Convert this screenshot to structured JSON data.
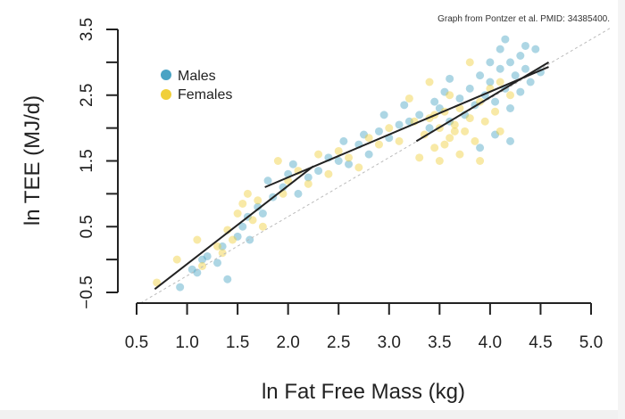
{
  "credit": "Graph from Pontzer et al. PMID: 34385400.",
  "chart_data": {
    "type": "scatter",
    "xlabel": "ln Fat Free Mass (kg)",
    "ylabel": "ln TEE (MJ/d)",
    "xlim": [
      0.5,
      5.0
    ],
    "ylim": [
      -0.5,
      3.5
    ],
    "xticks": [
      "0.5",
      "1.0",
      "1.5",
      "2.0",
      "2.5",
      "3.0",
      "3.5",
      "4.0",
      "4.5",
      "5.0"
    ],
    "yticks_labeled": [
      "-0.5",
      "0.5",
      "1.5",
      "2.5",
      "3.5"
    ],
    "yticks_minor": [
      0.0,
      1.0,
      2.0,
      3.0
    ],
    "grid": false,
    "legend_position": "top-left",
    "series": [
      {
        "name": "Males",
        "color": "#4aa3c4",
        "points": [
          [
            0.93,
            -0.42
          ],
          [
            1.05,
            -0.15
          ],
          [
            1.1,
            -0.2
          ],
          [
            1.2,
            0.05
          ],
          [
            1.15,
            0.0
          ],
          [
            1.3,
            -0.05
          ],
          [
            1.35,
            0.2
          ],
          [
            1.4,
            -0.3
          ],
          [
            1.5,
            0.35
          ],
          [
            1.55,
            0.5
          ],
          [
            1.6,
            0.65
          ],
          [
            1.62,
            0.3
          ],
          [
            1.7,
            0.8
          ],
          [
            1.75,
            0.7
          ],
          [
            1.8,
            1.2
          ],
          [
            1.85,
            0.95
          ],
          [
            1.95,
            1.1
          ],
          [
            2.0,
            1.3
          ],
          [
            2.05,
            1.45
          ],
          [
            2.1,
            1.0
          ],
          [
            2.2,
            1.25
          ],
          [
            2.3,
            1.35
          ],
          [
            2.4,
            1.55
          ],
          [
            2.5,
            1.5
          ],
          [
            2.55,
            1.8
          ],
          [
            2.6,
            1.45
          ],
          [
            2.7,
            1.75
          ],
          [
            2.75,
            1.9
          ],
          [
            2.8,
            1.6
          ],
          [
            2.9,
            1.95
          ],
          [
            2.95,
            2.2
          ],
          [
            3.0,
            1.85
          ],
          [
            3.1,
            2.05
          ],
          [
            3.15,
            2.35
          ],
          [
            3.2,
            2.1
          ],
          [
            3.3,
            2.2
          ],
          [
            3.4,
            2.0
          ],
          [
            3.45,
            2.4
          ],
          [
            3.5,
            2.3
          ],
          [
            3.55,
            2.55
          ],
          [
            3.6,
            2.1
          ],
          [
            3.7,
            2.45
          ],
          [
            3.75,
            2.2
          ],
          [
            3.8,
            2.6
          ],
          [
            3.85,
            2.35
          ],
          [
            3.9,
            2.8
          ],
          [
            3.95,
            2.5
          ],
          [
            4.0,
            2.7
          ],
          [
            4.0,
            3.0
          ],
          [
            4.05,
            2.4
          ],
          [
            4.1,
            2.9
          ],
          [
            4.1,
            3.2
          ],
          [
            4.15,
            2.6
          ],
          [
            4.2,
            3.0
          ],
          [
            4.2,
            2.3
          ],
          [
            4.25,
            2.8
          ],
          [
            4.3,
            3.1
          ],
          [
            4.3,
            2.55
          ],
          [
            4.35,
            2.9
          ],
          [
            4.4,
            2.7
          ],
          [
            4.45,
            3.2
          ],
          [
            4.5,
            2.85
          ],
          [
            4.2,
            1.8
          ],
          [
            4.05,
            1.9
          ],
          [
            3.9,
            1.7
          ],
          [
            4.35,
            3.25
          ],
          [
            4.15,
            3.35
          ],
          [
            3.6,
            2.75
          ]
        ]
      },
      {
        "name": "Females",
        "color": "#f0cf3a",
        "points": [
          [
            0.7,
            -0.35
          ],
          [
            0.9,
            0.0
          ],
          [
            1.1,
            0.3
          ],
          [
            1.15,
            -0.1
          ],
          [
            1.3,
            0.2
          ],
          [
            1.35,
            0.1
          ],
          [
            1.4,
            0.45
          ],
          [
            1.45,
            0.3
          ],
          [
            1.5,
            0.7
          ],
          [
            1.55,
            0.85
          ],
          [
            1.6,
            1.0
          ],
          [
            1.65,
            0.6
          ],
          [
            1.7,
            0.9
          ],
          [
            1.75,
            0.5
          ],
          [
            1.9,
            1.5
          ],
          [
            1.95,
            1.0
          ],
          [
            2.0,
            1.2
          ],
          [
            2.1,
            1.35
          ],
          [
            2.2,
            1.15
          ],
          [
            2.3,
            1.6
          ],
          [
            2.4,
            1.3
          ],
          [
            2.5,
            1.65
          ],
          [
            2.6,
            1.55
          ],
          [
            2.7,
            1.4
          ],
          [
            2.8,
            1.85
          ],
          [
            2.9,
            1.75
          ],
          [
            3.0,
            2.0
          ],
          [
            3.1,
            1.8
          ],
          [
            3.2,
            2.45
          ],
          [
            3.25,
            2.1
          ],
          [
            3.3,
            1.55
          ],
          [
            3.35,
            1.9
          ],
          [
            3.4,
            2.15
          ],
          [
            3.45,
            1.7
          ],
          [
            3.5,
            2.0
          ],
          [
            3.5,
            1.5
          ],
          [
            3.55,
            2.25
          ],
          [
            3.6,
            1.85
          ],
          [
            3.6,
            2.5
          ],
          [
            3.65,
            2.05
          ],
          [
            3.7,
            1.6
          ],
          [
            3.7,
            2.3
          ],
          [
            3.75,
            1.95
          ],
          [
            3.8,
            2.15
          ],
          [
            3.8,
            3.0
          ],
          [
            3.85,
            1.8
          ],
          [
            3.9,
            2.4
          ],
          [
            3.9,
            1.5
          ],
          [
            3.95,
            2.1
          ],
          [
            4.0,
            2.6
          ],
          [
            4.05,
            2.25
          ],
          [
            4.1,
            1.95
          ],
          [
            4.1,
            2.7
          ],
          [
            4.2,
            2.5
          ],
          [
            3.4,
            2.7
          ],
          [
            3.55,
            1.75
          ],
          [
            3.65,
            1.95
          ],
          [
            3.45,
            2.2
          ]
        ]
      }
    ],
    "fit_lines": [
      {
        "from": [
          0.68,
          -0.45
        ],
        "to": [
          2.25,
          1.42
        ]
      },
      {
        "from": [
          1.77,
          1.1
        ],
        "to": [
          4.58,
          2.93
        ]
      },
      {
        "from": [
          3.27,
          1.8
        ],
        "to": [
          4.58,
          3.0
        ]
      }
    ],
    "reference_line": {
      "style": "dashed",
      "color": "#bbbbbb",
      "from": [
        0.54,
        -0.66
      ],
      "to": [
        5.19,
        3.52
      ]
    }
  }
}
